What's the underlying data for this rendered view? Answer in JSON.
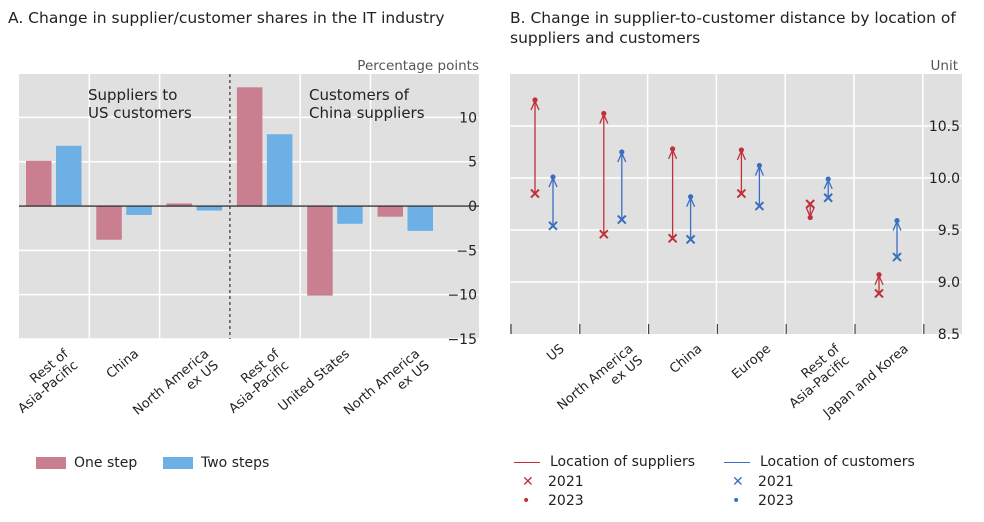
{
  "panelA": {
    "title": "A. Change in supplier/customer shares in the IT industry"
  },
  "panelB": {
    "title": "B. Change in supplier-to-customer distance by location of suppliers and customers"
  },
  "legendA": {
    "one": "One step",
    "two": "Two steps"
  },
  "legendB": {
    "sup_line": "Location of suppliers",
    "cust_line": "Location of customers",
    "x2021": "2021",
    "d2023": "2023"
  },
  "chart_data": [
    {
      "type": "bar",
      "title": "A. Change in supplier/customer shares in the IT industry",
      "ylabel": "Percentage points",
      "ylim": [
        -15,
        14.9
      ],
      "yticks": [
        10,
        5,
        0,
        -5,
        -10,
        -15
      ],
      "group_labels": [
        "Suppliers to US customers",
        "Customers of China suppliers"
      ],
      "categories": [
        "Rest of Asia-Pacific",
        "China",
        "North America ex US",
        "Rest of Asia-Pacific",
        "United States",
        "North America ex US"
      ],
      "series": [
        {
          "name": "One step",
          "color": "#c97f8f",
          "values": [
            5.1,
            -3.8,
            0.3,
            13.4,
            -10.1,
            -1.2
          ]
        },
        {
          "name": "Two steps",
          "color": "#6cb0e6",
          "values": [
            6.8,
            -1.0,
            -0.5,
            8.1,
            -2.0,
            -2.8
          ]
        }
      ]
    },
    {
      "type": "dot-arrow",
      "title": "B. Change in supplier-to-customer distance by location of suppliers and customers",
      "ylabel": "Unit",
      "ylim": [
        8.5,
        11.0
      ],
      "yticks": [
        10.5,
        10.0,
        9.5,
        9.0,
        8.5
      ],
      "categories": [
        "US",
        "North America ex US",
        "China",
        "Europe",
        "Rest of Asia-Pacific",
        "Japan and Korea"
      ],
      "series": [
        {
          "name": "Location of suppliers",
          "color": "#c0303a",
          "y2021": [
            9.85,
            9.46,
            9.42,
            9.85,
            9.75,
            8.89
          ],
          "y2023": [
            10.75,
            10.62,
            10.28,
            10.27,
            9.62,
            9.07
          ]
        },
        {
          "name": "Location of customers",
          "color": "#3a6fc0",
          "y2021": [
            9.54,
            9.6,
            9.41,
            9.73,
            9.81,
            9.24
          ],
          "y2023": [
            10.01,
            10.25,
            9.82,
            10.12,
            9.99,
            9.59
          ]
        }
      ]
    }
  ]
}
